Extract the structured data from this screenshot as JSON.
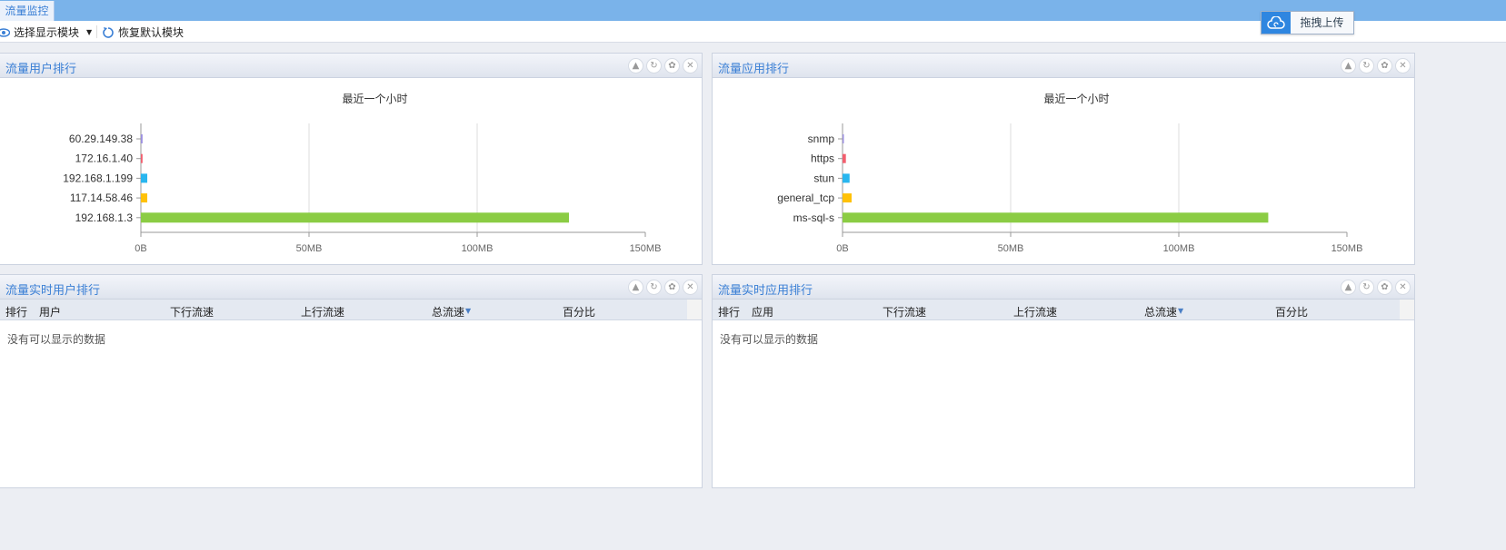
{
  "tab": {
    "label": "流量监控"
  },
  "toolbar": {
    "select_modules": "选择显示模块",
    "restore_default": "恢复默认模块"
  },
  "upload": {
    "label": "拖拽上传",
    "icon": "cloud-upload-icon",
    "color": "#2f86e0"
  },
  "panels": {
    "user_rank": {
      "title": "流量用户排行"
    },
    "app_rank": {
      "title": "流量应用排行"
    },
    "rt_user": {
      "title": "流量实时用户排行",
      "columns": [
        "排行",
        "用户",
        "下行流速",
        "上行流速",
        "总流速",
        "百分比"
      ],
      "empty": "没有可以显示的数据"
    },
    "rt_app": {
      "title": "流量实时应用排行",
      "columns": [
        "排行",
        "应用",
        "下行流速",
        "上行流速",
        "总流速",
        "百分比"
      ],
      "empty": "没有可以显示的数据"
    }
  },
  "chart_data": [
    {
      "type": "bar",
      "orientation": "horizontal",
      "title": "最近一个小时",
      "unit": "MB",
      "xlim": [
        0,
        150
      ],
      "xticks": [
        "0B",
        "50MB",
        "100MB",
        "150MB"
      ],
      "grid": true,
      "categories": [
        "60.29.149.38",
        "172.16.1.40",
        "192.168.1.199",
        "117.14.58.46",
        "192.168.1.3"
      ],
      "values": [
        0.5,
        0.5,
        1.9,
        1.9,
        127.3
      ],
      "colors": [
        "#9b8fe0",
        "#f25f6e",
        "#29b6ef",
        "#ffc107",
        "#8bcc44"
      ]
    },
    {
      "type": "bar",
      "orientation": "horizontal",
      "title": "最近一个小时",
      "unit": "MB",
      "xlim": [
        0,
        150
      ],
      "xticks": [
        "0B",
        "50MB",
        "100MB",
        "150MB"
      ],
      "grid": true,
      "categories": [
        "snmp",
        "https",
        "stun",
        "general_tcp",
        "ms-sql-s"
      ],
      "values": [
        0.3,
        1.0,
        2.1,
        2.7,
        126.6
      ],
      "colors": [
        "#9b8fe0",
        "#f25f6e",
        "#29b6ef",
        "#ffc107",
        "#8bcc44"
      ]
    }
  ]
}
